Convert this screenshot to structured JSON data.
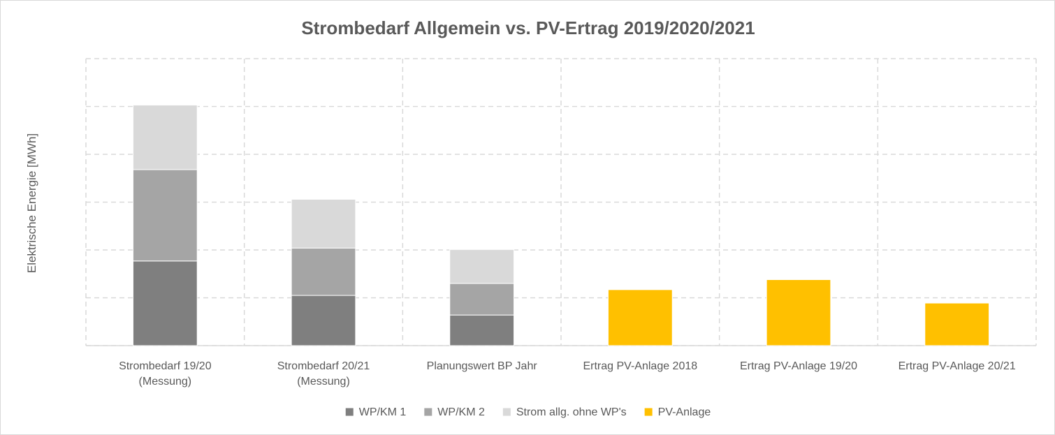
{
  "chart_data": {
    "type": "bar",
    "stacked": true,
    "title": "Strombedarf Allgemein vs. PV-Ertrag 2019/2020/2021",
    "xlabel": "",
    "ylabel": "Elektrische Energie [MWh]",
    "y_tick_labels_shown": false,
    "ylim": [
      0,
      6
    ],
    "grid": true,
    "legend_position": "bottom",
    "categories": [
      [
        "Strombedarf 19/20",
        "(Messung)"
      ],
      [
        "Strombedarf 20/21",
        "(Messung)"
      ],
      [
        "Planungswert BP Jahr"
      ],
      [
        "Ertrag PV-Anlage 2018"
      ],
      [
        "Ertrag PV-Anlage 19/20"
      ],
      [
        "Ertrag PV-Anlage 20/21"
      ]
    ],
    "series": [
      {
        "name": "WP/KM 1",
        "color": "#7f7f7f",
        "values": [
          1.77,
          1.05,
          0.64,
          0,
          0,
          0
        ]
      },
      {
        "name": "WP/KM 2",
        "color": "#a5a5a5",
        "values": [
          1.91,
          0.99,
          0.66,
          0,
          0,
          0
        ]
      },
      {
        "name": "Strom allg. ohne WP's",
        "color": "#d9d9d9",
        "values": [
          1.35,
          1.02,
          0.71,
          0,
          0,
          0
        ]
      },
      {
        "name": "PV-Anlage",
        "color": "#ffc000",
        "values": [
          0,
          0,
          0,
          1.17,
          1.38,
          0.89
        ]
      }
    ]
  }
}
